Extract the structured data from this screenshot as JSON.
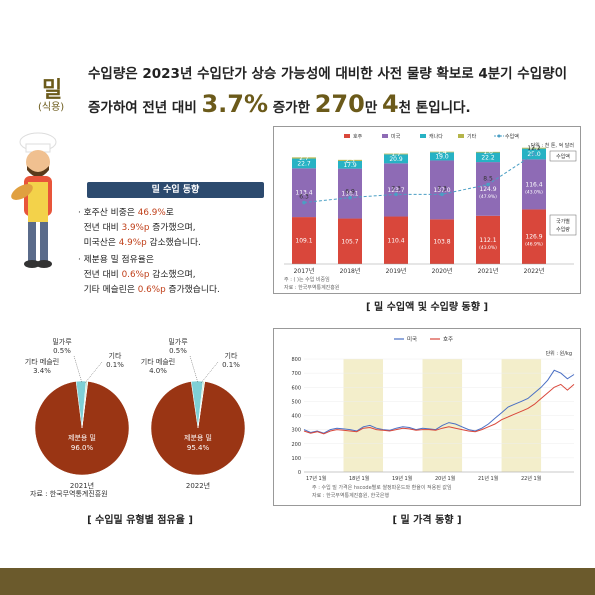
{
  "header": {
    "title": "밀",
    "subtitle": "(식용)",
    "line1": "수입량은 2023년 수입단가 상승 가능성에 대비한 사전 물량 확보로 4분기 수입량이",
    "line2_pre": "증가하여 전년 대비 ",
    "line2_pct": "3.7%",
    "line2_mid": " 증가한 ",
    "line2_num": "270",
    "line2_unit1": "만 ",
    "line2_num2": "4",
    "line2_unit2": "천 톤",
    "line2_end": "입니다."
  },
  "summary": {
    "banner": "밀 수입 동향",
    "b1_a": "호주산 비중은 ",
    "b1_b": "46.9%",
    "b1_c": "로",
    "b1_d": "전년 대비 ",
    "b1_e": "3.9%p",
    "b1_f": " 증가했으며,",
    "b1_g": "미국산은 ",
    "b1_h": "4.9%p",
    "b1_i": " 감소했습니다.",
    "b2_a": "제분용 밀 점유율은",
    "b2_b": "전년 대비 ",
    "b2_c": "0.6%p",
    "b2_d": " 감소했으며,",
    "b2_e": "기타 메슬린은 ",
    "b2_f": "0.6%p",
    "b2_g": " 증가했습니다."
  },
  "colors": {
    "australia": "#d9473b",
    "usa": "#8e6bb5",
    "canada": "#27b2c4",
    "other": "#b5b54a",
    "volume": "#4a9fc4",
    "pie_main": "#9a3514",
    "pie_small": "#7fd0d6",
    "brand": "#6b5a1a",
    "bar_bottom": "#6b5a2c"
  },
  "chart_data": [
    {
      "type": "bar",
      "title": "[ 밀 수입액 및 수입량 동향 ]",
      "unit_note": "단위 : 천 톤, 억 달러",
      "categories": [
        "2017년",
        "2018년",
        "2019년",
        "2020년",
        "2021년",
        "2022년"
      ],
      "legend": [
        "호주",
        "미국",
        "캐나다",
        "기타",
        "수입액"
      ],
      "series": [
        {
          "name": "호주",
          "values": [
            109.1,
            105.7,
            110.4,
            103.8,
            112.1,
            126.9
          ],
          "labels": [
            "109.1",
            "105.7",
            "110.4",
            "103.8",
            "112.1",
            "126.9"
          ],
          "sub_labels": [
            "",
            "",
            "",
            "",
            "(43.0%)",
            "(46.9%)"
          ]
        },
        {
          "name": "미국",
          "values": [
            113.4,
            116.1,
            123.7,
            137.0,
            124.9,
            116.4
          ],
          "labels": [
            "113.4",
            "116.1",
            "123.7",
            "137.0",
            "124.9",
            "116.4"
          ],
          "sub_labels": [
            "",
            "",
            "",
            "",
            "(47.9%)",
            "(43.0%)"
          ]
        },
        {
          "name": "캐나다",
          "values": [
            22.7,
            17.9,
            20.9,
            19.0,
            22.2,
            25.0
          ],
          "labels": [
            "22.7",
            "17.9",
            "20.9",
            "19.0",
            "22.2",
            "25.0"
          ]
        },
        {
          "name": "기타",
          "values": [
            2.7,
            2.5,
            1.7,
            1.4,
            1.6,
            2.1
          ],
          "labels": [
            "2.7",
            "2.5",
            "1.7",
            "1.4",
            "1.6",
            "2.1"
          ]
        }
      ],
      "line": {
        "name": "수입액",
        "values": [
          6.3,
          6.9,
          7.3,
          7.3,
          8.5,
          12.2
        ],
        "labels": [
          "6.3",
          "6.9",
          "7.3",
          "7.3",
          "8.5",
          "12.2"
        ]
      },
      "annotations": [
        "수입액",
        "국가별 수입량"
      ],
      "notes": [
        "주 : (  )는 수입 비중임",
        "자료 : 한국무역통계진흥원"
      ]
    },
    {
      "type": "pie",
      "title": "[ 수입밀 유형별 점유율 ]",
      "charts": [
        {
          "year": "2021년",
          "slices": [
            {
              "name": "제분용 밀",
              "value": 96.0,
              "label": "96.0%"
            },
            {
              "name": "기타 메슬린",
              "value": 3.4,
              "label": "3.4%"
            },
            {
              "name": "밀가루",
              "value": 0.5,
              "label": "0.5%"
            },
            {
              "name": "기타",
              "value": 0.1,
              "label": "0.1%"
            }
          ]
        },
        {
          "year": "2022년",
          "slices": [
            {
              "name": "제분용 밀",
              "value": 95.4,
              "label": "95.4%"
            },
            {
              "name": "기타 메슬린",
              "value": 4.0,
              "label": "4.0%"
            },
            {
              "name": "밀가루",
              "value": 0.5,
              "label": "0.5%"
            },
            {
              "name": "기타",
              "value": 0.1,
              "label": "0.1%"
            }
          ]
        }
      ],
      "source": "자료 : 한국무역통계진흥원"
    },
    {
      "type": "line",
      "title": "[ 밀 가격 동향 ]",
      "unit_note": "단위 : 원/kg",
      "legend": [
        "미국",
        "호주"
      ],
      "ylim": [
        0,
        800
      ],
      "yticks": [
        "0",
        "100",
        "200",
        "300",
        "400",
        "500",
        "600",
        "700",
        "800"
      ],
      "xticks": [
        "17년 1월",
        "18년 1월",
        "19년 1월",
        "20년 1월",
        "21년 1월",
        "22년 1월"
      ],
      "series": [
        {
          "name": "미국",
          "values": [
            300,
            280,
            290,
            275,
            300,
            310,
            305,
            300,
            290,
            320,
            330,
            310,
            300,
            295,
            310,
            320,
            315,
            300,
            310,
            305,
            300,
            330,
            350,
            340,
            320,
            300,
            290,
            310,
            340,
            380,
            420,
            460,
            480,
            500,
            520,
            560,
            600,
            650,
            720,
            700,
            660,
            690
          ]
        },
        {
          "name": "호주",
          "values": [
            290,
            275,
            285,
            270,
            290,
            300,
            295,
            290,
            285,
            310,
            315,
            300,
            295,
            290,
            300,
            310,
            305,
            295,
            300,
            300,
            295,
            310,
            320,
            310,
            300,
            290,
            285,
            300,
            320,
            340,
            370,
            390,
            410,
            430,
            450,
            480,
            520,
            560,
            600,
            620,
            580,
            620
          ]
        }
      ],
      "notes": [
        "주 : 수입 밀 가격은 hscode별로 쌀정파운드와 환율이 적용된 값임",
        "자료 : 한국무역통계진흥원, 한국은행"
      ]
    }
  ]
}
